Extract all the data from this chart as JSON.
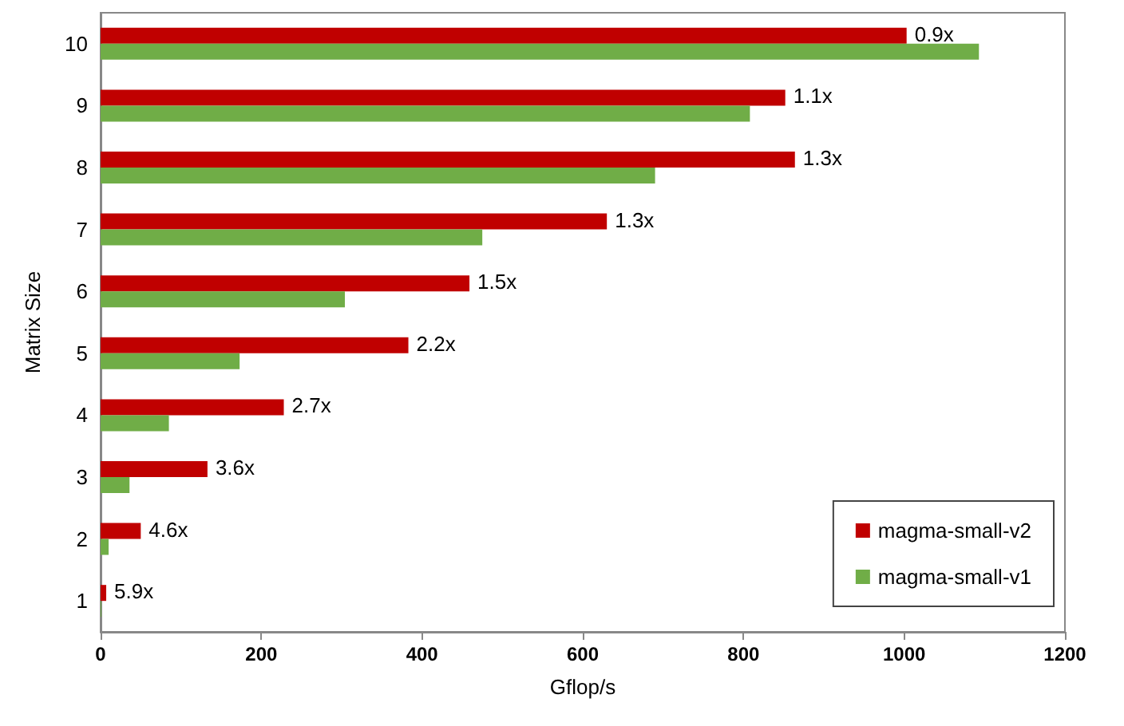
{
  "chart_data": {
    "type": "bar",
    "orientation": "horizontal",
    "categories": [
      "10",
      "9",
      "8",
      "7",
      "6",
      "5",
      "4",
      "3",
      "2",
      "1"
    ],
    "series": [
      {
        "name": "magma-small-v2",
        "color": "#c00000",
        "values": [
          1003,
          852,
          864,
          630,
          459,
          383,
          228,
          133,
          50,
          7
        ]
      },
      {
        "name": "magma-small-v1",
        "color": "#70ad47",
        "values": [
          1093,
          808,
          690,
          475,
          304,
          173,
          85,
          36,
          10,
          1
        ]
      }
    ],
    "annotations": [
      {
        "text": "0.9x",
        "x": 1003,
        "y": "10"
      },
      {
        "text": "1.1x",
        "x": 852,
        "y": "9"
      },
      {
        "text": "1.3x",
        "x": 864,
        "y": "8"
      },
      {
        "text": "1.3x",
        "x": 630,
        "y": "7"
      },
      {
        "text": "1.5x",
        "x": 459,
        "y": "6"
      },
      {
        "text": "2.2x",
        "x": 383,
        "y": "5"
      },
      {
        "text": "2.7x",
        "x": 228,
        "y": "4"
      },
      {
        "text": "3.6x",
        "x": 133,
        "y": "3"
      },
      {
        "text": "4.6x",
        "x": 50,
        "y": "2"
      },
      {
        "text": "5.9x",
        "x": 7,
        "y": "1"
      }
    ],
    "xlim": [
      0,
      1200
    ],
    "xticks": [
      0,
      200,
      400,
      600,
      800,
      1000,
      1200
    ],
    "xlabel": "Gflop/s",
    "ylabel": "Matrix Size",
    "grid": false,
    "legend": "bottom right"
  }
}
